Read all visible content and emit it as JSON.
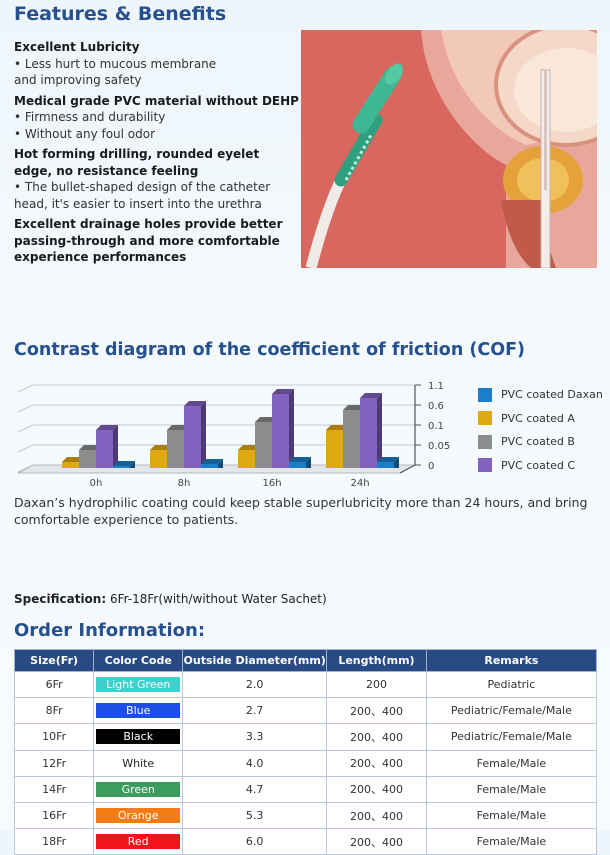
{
  "features": {
    "title": "Features & Benefits",
    "items": [
      {
        "title": "Excellent Lubricity",
        "lines": [
          "• Less hurt to mucous membrane",
          "and improving safety"
        ]
      },
      {
        "title": "Medical grade PVC material without DEHP",
        "lines": [
          "• Firmness and durability",
          "• Without any foul odor"
        ]
      },
      {
        "title": "Hot forming drilling, rounded eyelet edge, no resistance feeling",
        "lines": [
          "• The bullet-shaped design of the catheter head, it's easier to insert into the urethra"
        ]
      },
      {
        "title": "Excellent drainage holes provide better passing-through and more comfortable experience performances",
        "lines": []
      }
    ]
  },
  "cof": {
    "title": "Contrast diagram of the coefficient of friction (COF)",
    "description": "Daxan’s hydrophilic coating could keep stable superlubricity more than 24 hours, and bring comfortable experience to patients."
  },
  "chart_data": {
    "type": "bar",
    "categories": [
      "0h",
      "8h",
      "16h",
      "24h"
    ],
    "y_ticks": [
      "0",
      "0.05",
      "0.1",
      "0.6",
      "1.1"
    ],
    "series": [
      {
        "name": "PVC coated Daxan",
        "color": "#1a7fc8",
        "values": [
          0.01,
          0.015,
          0.02,
          0.02
        ]
      },
      {
        "name": "PVC coated A",
        "color": "#e0a912",
        "values": [
          0.02,
          0.05,
          0.05,
          0.1
        ]
      },
      {
        "name": "PVC coated B",
        "color": "#8c8c8c",
        "values": [
          0.05,
          0.1,
          0.3,
          0.6
        ]
      },
      {
        "name": "PVC coated C",
        "color": "#8462bf",
        "values": [
          0.1,
          0.7,
          1.0,
          0.9
        ]
      }
    ]
  },
  "spec": {
    "label": "Specification:",
    "value": " 6Fr-18Fr(with/without Water Sachet)"
  },
  "order": {
    "title": "Order Information:",
    "headers": [
      "Size(Fr)",
      "Color Code",
      "Outside Diameter(mm)",
      "Length(mm)",
      "Remarks"
    ],
    "rows": [
      {
        "size": "6Fr",
        "color": "Light Green",
        "bg": "#3ecfcf",
        "fg": "#ffffff",
        "od": "2.0",
        "length": "200",
        "remarks": "Pediatric"
      },
      {
        "size": "8Fr",
        "color": "Blue",
        "bg": "#1d4fe8",
        "fg": "#ffffff",
        "od": "2.7",
        "length": "200、400",
        "remarks": "Pediatric/Female/Male"
      },
      {
        "size": "10Fr",
        "color": "Black",
        "bg": "#000000",
        "fg": "#ffffff",
        "od": "3.3",
        "length": "200、400",
        "remarks": "Pediatric/Female/Male"
      },
      {
        "size": "12Fr",
        "color": "White",
        "bg": "#ffffff",
        "fg": "#222222",
        "od": "4.0",
        "length": "200、400",
        "remarks": "Female/Male"
      },
      {
        "size": "14Fr",
        "color": "Green",
        "bg": "#3a9d5d",
        "fg": "#ffffff",
        "od": "4.7",
        "length": "200、400",
        "remarks": "Female/Male"
      },
      {
        "size": "16Fr",
        "color": "Orange",
        "bg": "#f57c12",
        "fg": "#ffffff",
        "od": "5.3",
        "length": "200、400",
        "remarks": "Female/Male"
      },
      {
        "size": "18Fr",
        "color": "Red",
        "bg": "#f0141b",
        "fg": "#ffffff",
        "od": "6.0",
        "length": "200、400",
        "remarks": "Female/Male"
      }
    ]
  }
}
